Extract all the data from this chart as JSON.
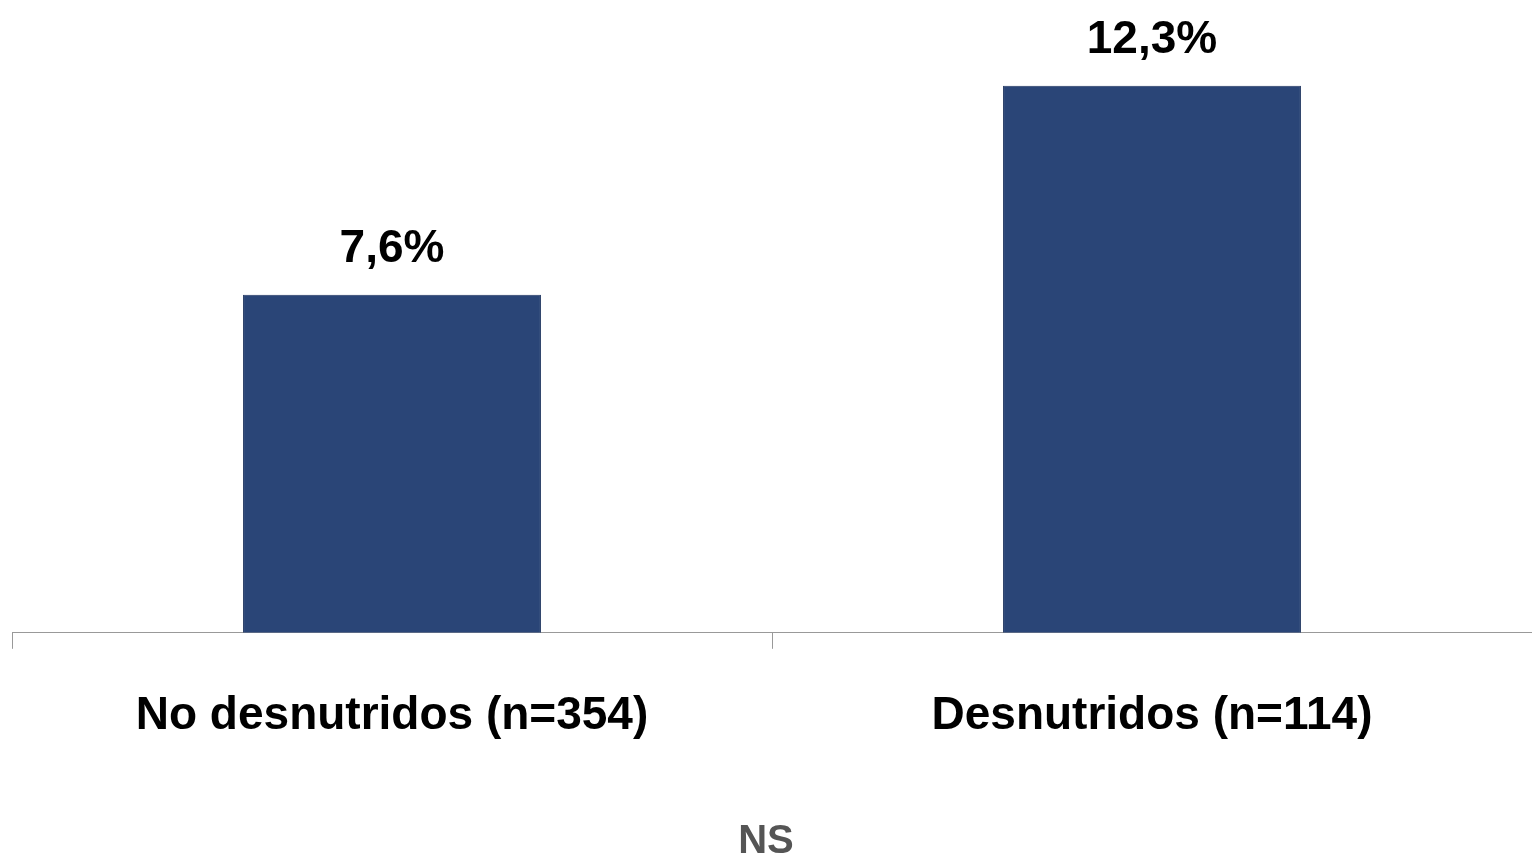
{
  "chart_data": {
    "type": "bar",
    "categories": [
      "No desnutridos (n=354)",
      "Desnutridos (n=114)"
    ],
    "values": [
      7.6,
      12.3
    ],
    "value_labels": [
      "7,6%",
      "12,3%"
    ],
    "color": "#2a4577",
    "grid": false,
    "legend": false,
    "annotations": [
      "NS"
    ]
  }
}
